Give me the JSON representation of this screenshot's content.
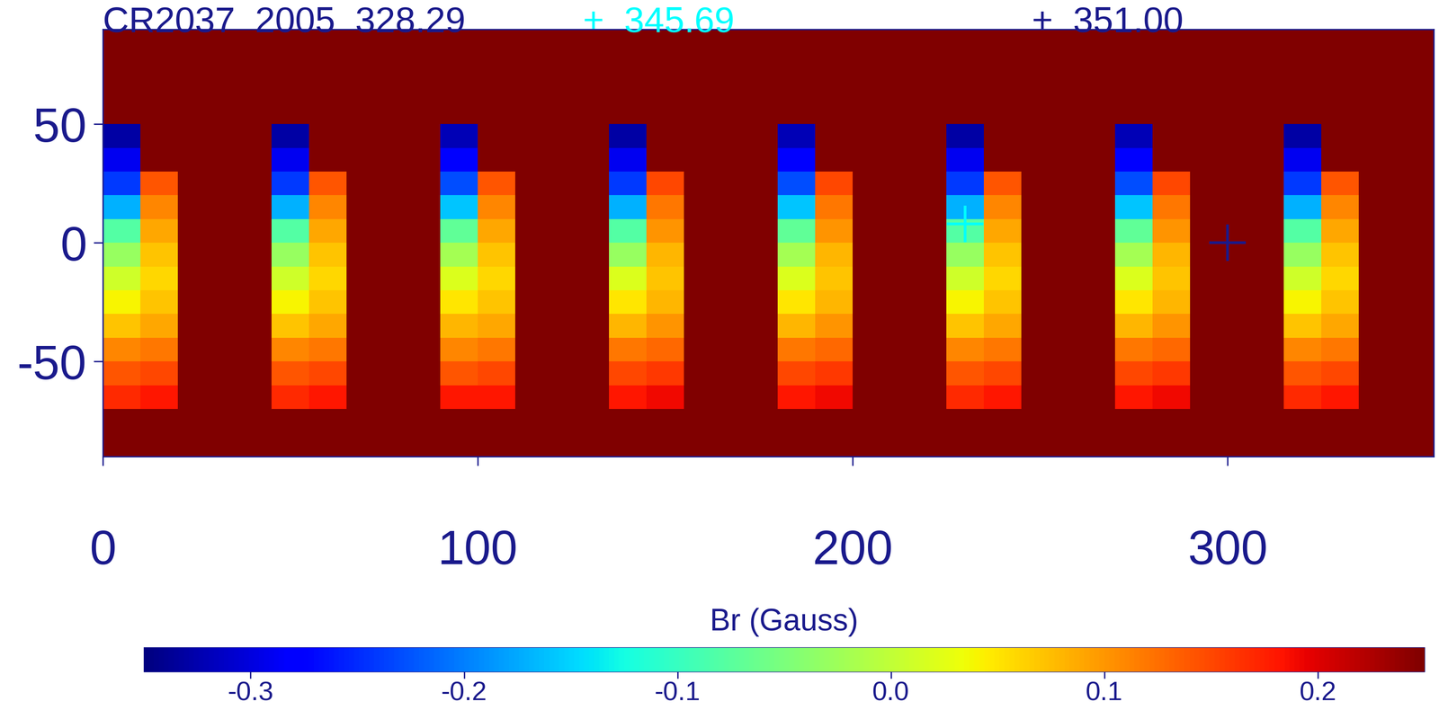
{
  "chart_data": {
    "type": "heatmap",
    "title": "CR2037  2005  328.29",
    "xlim": [
      0,
      355
    ],
    "xticks": [
      0,
      100,
      200,
      300
    ],
    "ylim": [
      -90,
      90
    ],
    "yticks": [
      -50,
      0,
      50
    ],
    "x_edges": [
      0,
      10,
      20,
      45,
      55,
      65,
      90,
      100,
      110,
      135,
      145,
      155,
      180,
      190,
      200,
      225,
      235,
      245,
      270,
      280,
      290,
      315,
      325,
      335,
      355
    ],
    "y_edges": [
      -90,
      -70,
      -60,
      -50,
      -40,
      -30,
      -20,
      -10,
      0,
      10,
      20,
      30,
      40,
      50,
      90
    ],
    "cells": [
      [
        0.25,
        0.25,
        0.25,
        0.25,
        0.25,
        0.25,
        0.25,
        0.25,
        0.25,
        0.25,
        0.25,
        0.25,
        0.25,
        0.25,
        0.25,
        0.25,
        0.25,
        0.25,
        0.25,
        0.25,
        0.25,
        0.25,
        0.25,
        0.25
      ],
      [
        0.17,
        0.18,
        0.25,
        0.17,
        0.18,
        0.25,
        0.18,
        0.18,
        0.25,
        0.18,
        0.19,
        0.25,
        0.18,
        0.19,
        0.25,
        0.17,
        0.18,
        0.25,
        0.18,
        0.19,
        0.25,
        0.17,
        0.18,
        0.25
      ],
      [
        0.14,
        0.15,
        0.25,
        0.14,
        0.15,
        0.25,
        0.14,
        0.15,
        0.25,
        0.15,
        0.16,
        0.25,
        0.15,
        0.16,
        0.25,
        0.14,
        0.15,
        0.25,
        0.15,
        0.16,
        0.25,
        0.14,
        0.15,
        0.25
      ],
      [
        0.11,
        0.12,
        0.25,
        0.11,
        0.12,
        0.25,
        0.11,
        0.12,
        0.25,
        0.12,
        0.13,
        0.25,
        0.12,
        0.13,
        0.25,
        0.11,
        0.12,
        0.25,
        0.12,
        0.13,
        0.25,
        0.11,
        0.12,
        0.25
      ],
      [
        0.07,
        0.09,
        0.25,
        0.07,
        0.09,
        0.25,
        0.08,
        0.09,
        0.25,
        0.08,
        0.1,
        0.25,
        0.08,
        0.1,
        0.25,
        0.07,
        0.09,
        0.25,
        0.08,
        0.1,
        0.25,
        0.07,
        0.09,
        0.25
      ],
      [
        0.04,
        0.07,
        0.25,
        0.04,
        0.07,
        0.25,
        0.05,
        0.07,
        0.25,
        0.05,
        0.08,
        0.25,
        0.05,
        0.08,
        0.25,
        0.04,
        0.07,
        0.25,
        0.05,
        0.08,
        0.25,
        0.04,
        0.07,
        0.25
      ],
      [
        0.01,
        0.06,
        0.25,
        0.01,
        0.06,
        0.25,
        0.02,
        0.06,
        0.25,
        0.02,
        0.07,
        0.25,
        0.02,
        0.07,
        0.25,
        0.01,
        0.06,
        0.25,
        0.02,
        0.07,
        0.25,
        0.01,
        0.06,
        0.25
      ],
      [
        -0.03,
        0.07,
        0.25,
        -0.03,
        0.07,
        0.25,
        -0.02,
        0.07,
        0.25,
        -0.03,
        0.08,
        0.25,
        -0.02,
        0.08,
        0.25,
        -0.03,
        0.07,
        0.25,
        -0.02,
        0.08,
        0.25,
        -0.03,
        0.07,
        0.25
      ],
      [
        -0.08,
        0.09,
        0.25,
        -0.08,
        0.09,
        0.25,
        -0.07,
        0.09,
        0.25,
        -0.08,
        0.1,
        0.25,
        -0.07,
        0.1,
        0.25,
        -0.08,
        0.09,
        0.25,
        -0.07,
        0.1,
        0.25,
        -0.08,
        0.09,
        0.25
      ],
      [
        -0.17,
        0.11,
        0.25,
        -0.17,
        0.11,
        0.25,
        -0.16,
        0.11,
        0.25,
        -0.17,
        0.12,
        0.25,
        -0.16,
        0.12,
        0.25,
        -0.17,
        0.11,
        0.25,
        -0.16,
        0.12,
        0.25,
        -0.17,
        0.11,
        0.25
      ],
      [
        -0.24,
        0.14,
        0.25,
        -0.24,
        0.14,
        0.25,
        -0.23,
        0.14,
        0.25,
        -0.24,
        0.15,
        0.25,
        -0.23,
        0.15,
        0.25,
        -0.24,
        0.14,
        0.25,
        -0.23,
        0.15,
        0.25,
        -0.24,
        0.14,
        0.25
      ],
      [
        -0.29,
        0.25,
        0.25,
        -0.29,
        0.25,
        0.25,
        -0.28,
        0.25,
        0.25,
        -0.29,
        0.25,
        0.25,
        -0.28,
        0.25,
        0.25,
        -0.29,
        0.25,
        0.25,
        -0.28,
        0.25,
        0.25,
        -0.29,
        0.25,
        0.25
      ],
      [
        -0.33,
        0.25,
        0.25,
        -0.33,
        0.25,
        0.25,
        -0.32,
        0.25,
        0.25,
        -0.33,
        0.25,
        0.25,
        -0.32,
        0.25,
        0.25,
        -0.33,
        0.25,
        0.25,
        -0.32,
        0.25,
        0.25,
        -0.33,
        0.25,
        0.25
      ],
      [
        0.25,
        0.25,
        0.25,
        0.25,
        0.25,
        0.25,
        0.25,
        0.25,
        0.25,
        0.25,
        0.25,
        0.25,
        0.25,
        0.25,
        0.25,
        0.25,
        0.25,
        0.25,
        0.25,
        0.25,
        0.25,
        0.25,
        0.25,
        0.25
      ]
    ],
    "colorbar": {
      "label": "Br (Gauss)",
      "range": [
        -0.35,
        0.25
      ],
      "ticks": [
        -0.3,
        -0.2,
        -0.1,
        0.0,
        0.1,
        0.2
      ]
    },
    "series": [
      {
        "name": "+  345.69",
        "type": "scatter",
        "marker": "plus",
        "color": "#00ffff",
        "x": [
          230
        ],
        "y": [
          8
        ]
      },
      {
        "name": "+  351.00",
        "type": "scatter",
        "marker": "plus",
        "color": "#1a1a8c",
        "x": [
          300
        ],
        "y": [
          0
        ]
      }
    ]
  }
}
